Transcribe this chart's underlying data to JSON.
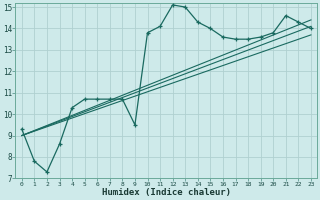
{
  "xlabel": "Humidex (Indice chaleur)",
  "bg_color": "#ceeaea",
  "grid_color": "#b0d0d0",
  "line_color": "#1a6a60",
  "xlim": [
    -0.5,
    23.5
  ],
  "ylim": [
    7,
    15.2
  ],
  "xtick_labels": [
    "0",
    "1",
    "2",
    "3",
    "4",
    "5",
    "6",
    "7",
    "8",
    "9",
    "10",
    "11",
    "12",
    "13",
    "14",
    "15",
    "16",
    "17",
    "18",
    "19",
    "20",
    "21",
    "22",
    "23"
  ],
  "ytick_labels": [
    "7",
    "8",
    "9",
    "10",
    "11",
    "12",
    "13",
    "14",
    "15"
  ],
  "xticks": [
    0,
    1,
    2,
    3,
    4,
    5,
    6,
    7,
    8,
    9,
    10,
    11,
    12,
    13,
    14,
    15,
    16,
    17,
    18,
    19,
    20,
    21,
    22,
    23
  ],
  "yticks": [
    7,
    8,
    9,
    10,
    11,
    12,
    13,
    14,
    15
  ],
  "line1_x": [
    0,
    1,
    2,
    3,
    4,
    5,
    6,
    7,
    8,
    9,
    10,
    11,
    12,
    13,
    14,
    15,
    16,
    17,
    18,
    19,
    20,
    21,
    22,
    23
  ],
  "line1_y": [
    9.3,
    7.8,
    7.3,
    8.6,
    10.3,
    10.7,
    10.7,
    10.7,
    10.7,
    9.5,
    13.8,
    14.1,
    15.1,
    15.0,
    14.3,
    14.0,
    13.6,
    13.5,
    13.5,
    13.6,
    13.8,
    14.6,
    14.3,
    14.0
  ],
  "line2_x": [
    0,
    23
  ],
  "line2_y": [
    9.0,
    13.7
  ],
  "line3_x": [
    0,
    23
  ],
  "line3_y": [
    9.0,
    14.1
  ],
  "line4_x": [
    0,
    23
  ],
  "line4_y": [
    9.0,
    14.4
  ]
}
